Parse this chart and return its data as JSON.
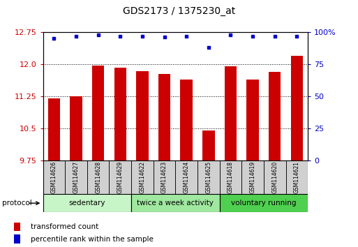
{
  "title": "GDS2173 / 1375230_at",
  "samples": [
    "GSM114626",
    "GSM114627",
    "GSM114628",
    "GSM114629",
    "GSM114622",
    "GSM114623",
    "GSM114624",
    "GSM114625",
    "GSM114618",
    "GSM114619",
    "GSM114620",
    "GSM114621"
  ],
  "red_values": [
    11.2,
    11.25,
    11.97,
    11.92,
    11.83,
    11.78,
    11.65,
    10.45,
    11.95,
    11.65,
    11.82,
    12.2
  ],
  "blue_values": [
    95,
    97,
    98,
    97,
    97,
    96,
    97,
    88,
    98,
    97,
    97,
    97
  ],
  "ylim_left": [
    9.75,
    12.75
  ],
  "ylim_right": [
    0,
    100
  ],
  "yticks_left": [
    9.75,
    10.5,
    11.25,
    12.0,
    12.75
  ],
  "yticks_right": [
    0,
    25,
    50,
    75,
    100
  ],
  "groups": [
    {
      "label": "sedentary",
      "indices": [
        0,
        1,
        2,
        3
      ],
      "color": "#c8f5c8"
    },
    {
      "label": "twice a week activity",
      "indices": [
        4,
        5,
        6,
        7
      ],
      "color": "#a0e8a0"
    },
    {
      "label": "voluntary running",
      "indices": [
        8,
        9,
        10,
        11
      ],
      "color": "#50d050"
    }
  ],
  "protocol_label": "protocol",
  "bar_color": "#cc0000",
  "dot_color": "#0000cc",
  "bar_width": 0.55,
  "bg_color": "#ffffff",
  "legend_red_label": "transformed count",
  "legend_blue_label": "percentile rank within the sample",
  "left_tick_color": "#cc0000",
  "right_tick_color": "#0000cc",
  "tick_label_fontsize": 8,
  "title_fontsize": 10,
  "sample_fontsize": 5.5,
  "group_fontsize": 7.5
}
